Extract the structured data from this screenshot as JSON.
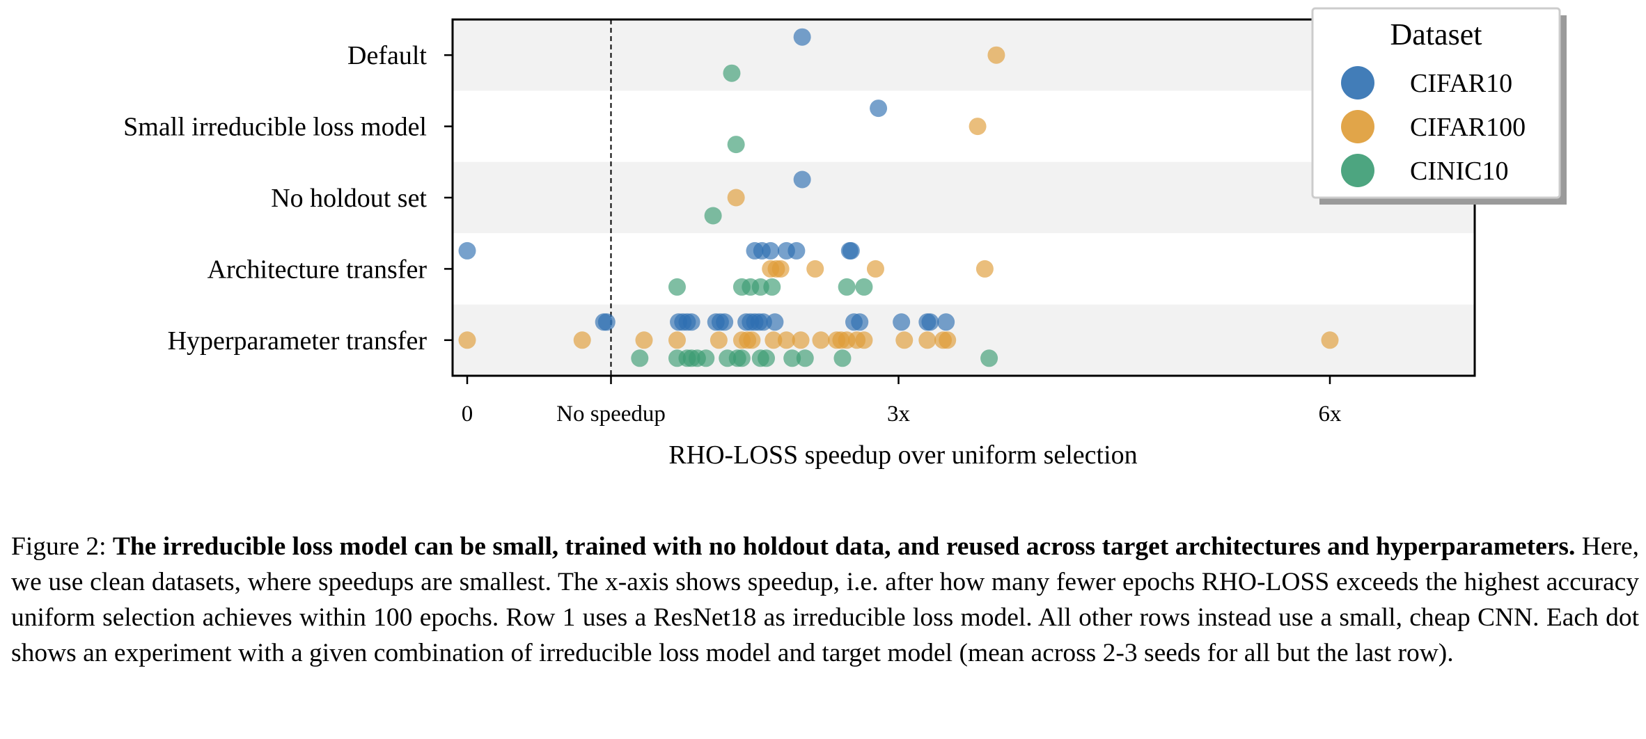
{
  "chart_data": {
    "type": "scatter",
    "xlabel": "RHO-LOSS speedup over uniform selection",
    "xlim": [
      -0.1,
      7.0
    ],
    "x_ticks": [
      {
        "value": 0,
        "label": "0"
      },
      {
        "value": 1,
        "label": "No speedup"
      },
      {
        "value": 3,
        "label": "3x"
      },
      {
        "value": 6,
        "label": "6x"
      }
    ],
    "reference_line": {
      "x": 1,
      "style": "dashed"
    },
    "categories": [
      "Default",
      "Small irreducible loss model",
      "No holdout set",
      "Architecture transfer",
      "Hyperparameter transfer"
    ],
    "legend": {
      "title": "Dataset",
      "position": "top-right"
    },
    "series": [
      {
        "name": "CIFAR10",
        "color": "#2e6fb0",
        "points": [
          {
            "row": 0,
            "x": 2.33
          },
          {
            "row": 1,
            "x": 2.86
          },
          {
            "row": 2,
            "x": 2.33
          },
          {
            "row": 3,
            "x": 0.0
          },
          {
            "row": 3,
            "x": 2.0
          },
          {
            "row": 3,
            "x": 2.05
          },
          {
            "row": 3,
            "x": 2.11
          },
          {
            "row": 3,
            "x": 2.22
          },
          {
            "row": 3,
            "x": 2.29
          },
          {
            "row": 3,
            "x": 2.66
          },
          {
            "row": 3,
            "x": 2.67
          },
          {
            "row": 4,
            "x": 0.95
          },
          {
            "row": 4,
            "x": 0.97
          },
          {
            "row": 4,
            "x": 1.47
          },
          {
            "row": 4,
            "x": 1.5
          },
          {
            "row": 4,
            "x": 1.53
          },
          {
            "row": 4,
            "x": 1.56
          },
          {
            "row": 4,
            "x": 1.73
          },
          {
            "row": 4,
            "x": 1.76
          },
          {
            "row": 4,
            "x": 1.79
          },
          {
            "row": 4,
            "x": 1.94
          },
          {
            "row": 4,
            "x": 1.97
          },
          {
            "row": 4,
            "x": 2.0
          },
          {
            "row": 4,
            "x": 2.03
          },
          {
            "row": 4,
            "x": 2.06
          },
          {
            "row": 4,
            "x": 2.14
          },
          {
            "row": 4,
            "x": 2.69
          },
          {
            "row": 4,
            "x": 2.73
          },
          {
            "row": 4,
            "x": 3.02
          },
          {
            "row": 4,
            "x": 3.2
          },
          {
            "row": 4,
            "x": 3.22
          },
          {
            "row": 4,
            "x": 3.33
          }
        ]
      },
      {
        "name": "CIFAR100",
        "color": "#de9b35",
        "points": [
          {
            "row": 0,
            "x": 3.68
          },
          {
            "row": 1,
            "x": 3.55
          },
          {
            "row": 2,
            "x": 1.87
          },
          {
            "row": 3,
            "x": 2.11
          },
          {
            "row": 3,
            "x": 2.15
          },
          {
            "row": 3,
            "x": 2.18
          },
          {
            "row": 3,
            "x": 2.42
          },
          {
            "row": 3,
            "x": 2.84
          },
          {
            "row": 3,
            "x": 3.6
          },
          {
            "row": 4,
            "x": 0.0
          },
          {
            "row": 4,
            "x": 0.8
          },
          {
            "row": 4,
            "x": 1.23
          },
          {
            "row": 4,
            "x": 1.46
          },
          {
            "row": 4,
            "x": 1.75
          },
          {
            "row": 4,
            "x": 1.91
          },
          {
            "row": 4,
            "x": 1.95
          },
          {
            "row": 4,
            "x": 1.98
          },
          {
            "row": 4,
            "x": 2.13
          },
          {
            "row": 4,
            "x": 2.22
          },
          {
            "row": 4,
            "x": 2.32
          },
          {
            "row": 4,
            "x": 2.46
          },
          {
            "row": 4,
            "x": 2.57
          },
          {
            "row": 4,
            "x": 2.6
          },
          {
            "row": 4,
            "x": 2.64
          },
          {
            "row": 4,
            "x": 2.71
          },
          {
            "row": 4,
            "x": 2.76
          },
          {
            "row": 4,
            "x": 3.04
          },
          {
            "row": 4,
            "x": 3.2
          },
          {
            "row": 4,
            "x": 3.31
          },
          {
            "row": 4,
            "x": 3.34
          },
          {
            "row": 4,
            "x": 6.0
          }
        ]
      },
      {
        "name": "CINIC10",
        "color": "#3a9b72",
        "points": [
          {
            "row": 0,
            "x": 1.84
          },
          {
            "row": 1,
            "x": 1.87
          },
          {
            "row": 2,
            "x": 1.71
          },
          {
            "row": 3,
            "x": 1.46
          },
          {
            "row": 3,
            "x": 1.91
          },
          {
            "row": 3,
            "x": 1.97
          },
          {
            "row": 3,
            "x": 2.04
          },
          {
            "row": 3,
            "x": 2.12
          },
          {
            "row": 3,
            "x": 2.64
          },
          {
            "row": 3,
            "x": 2.76
          },
          {
            "row": 4,
            "x": 1.2
          },
          {
            "row": 4,
            "x": 1.46
          },
          {
            "row": 4,
            "x": 1.53
          },
          {
            "row": 4,
            "x": 1.56
          },
          {
            "row": 4,
            "x": 1.6
          },
          {
            "row": 4,
            "x": 1.66
          },
          {
            "row": 4,
            "x": 1.81
          },
          {
            "row": 4,
            "x": 1.88
          },
          {
            "row": 4,
            "x": 1.91
          },
          {
            "row": 4,
            "x": 2.04
          },
          {
            "row": 4,
            "x": 2.08
          },
          {
            "row": 4,
            "x": 2.26
          },
          {
            "row": 4,
            "x": 2.35
          },
          {
            "row": 4,
            "x": 2.61
          },
          {
            "row": 4,
            "x": 3.63
          }
        ]
      }
    ]
  },
  "caption": {
    "label": "Figure 2:",
    "bold": "The irreducible loss model can be small, trained with no holdout data, and reused across target architectures and hyperparameters.",
    "text": "Here, we use clean datasets, where speedups are smallest. The x-axis shows speedup, i.e. after how many fewer epochs RHO-LOSS exceeds the highest accuracy uniform selection achieves within 100 epochs. Row 1 uses a ResNet18 as irreducible loss model. All other rows instead use a small, cheap CNN. Each dot shows an experiment with a given combination of irreducible loss model and target model (mean across 2-3 seeds for all but the last row)."
  }
}
